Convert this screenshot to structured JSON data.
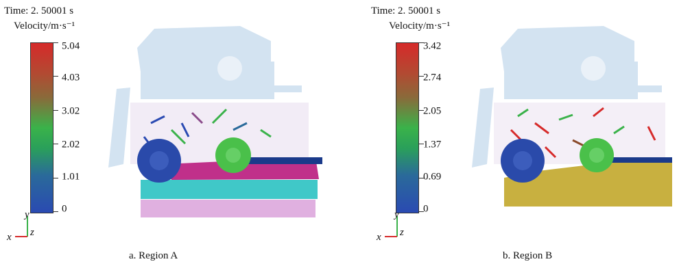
{
  "panels": [
    {
      "time_label": "Time: 2. 50001 s",
      "velocity_label": "Velocity/m·s⁻¹",
      "scale": [
        "5.04",
        "4.03",
        "3.02",
        "2.02",
        "1.01",
        "0"
      ],
      "axes": {
        "y": "y",
        "x": "x",
        "z": "z"
      },
      "caption": "a. Region A"
    },
    {
      "time_label": "Time: 2. 50001 s",
      "velocity_label": "Velocity/m·s⁻¹",
      "scale": [
        "3.42",
        "2.74",
        "2.05",
        "1.37",
        "0.69",
        "0"
      ],
      "axes": {
        "y": "y",
        "x": "x",
        "z": "z"
      },
      "caption": "b. Region B"
    }
  ],
  "colors": {
    "velocity_high": "#d62a2a",
    "velocity_mid": "#3ab24a",
    "velocity_low": "#2a4ab2",
    "machine_frame": "#cfe0f0",
    "sphere_left": "#2a4aaa",
    "sphere_right": "#4ac04a",
    "layer_magenta": "#c0308a",
    "layer_cyan": "#40c8c8",
    "layer_pink": "#e0b0e0",
    "layer_soil_b": "#c8b040"
  }
}
